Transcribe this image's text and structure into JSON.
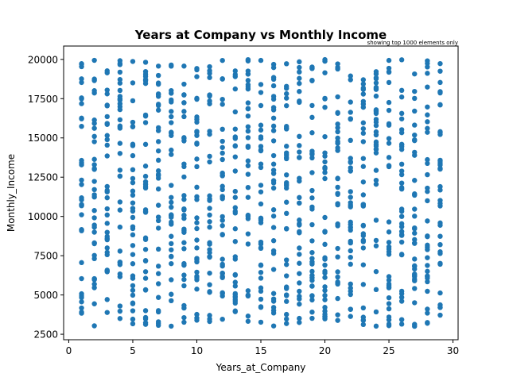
{
  "chart_data": {
    "type": "scatter",
    "title": "Years at Company vs Monthly Income",
    "annotation": "showing top 1000 elements only",
    "xlabel": "Years_at_Company",
    "ylabel": "Monthly_Income",
    "xlim": [
      -0.4,
      30.4
    ],
    "ylim": [
      2150,
      20850
    ],
    "xticks": [
      0,
      5,
      10,
      15,
      20,
      25,
      30
    ],
    "yticks": [
      2500,
      5000,
      7500,
      10000,
      12500,
      15000,
      17500,
      20000
    ],
    "ytick_labels": [
      "2500",
      "5000",
      "7500",
      "10000",
      "12500",
      "15000",
      "17500",
      "20000"
    ],
    "grid": false,
    "marker_color": "#1f77b4",
    "x_range": [
      1,
      29
    ],
    "y_range": [
      3000,
      20000
    ],
    "points_per_x": 34,
    "seed": 7
  }
}
